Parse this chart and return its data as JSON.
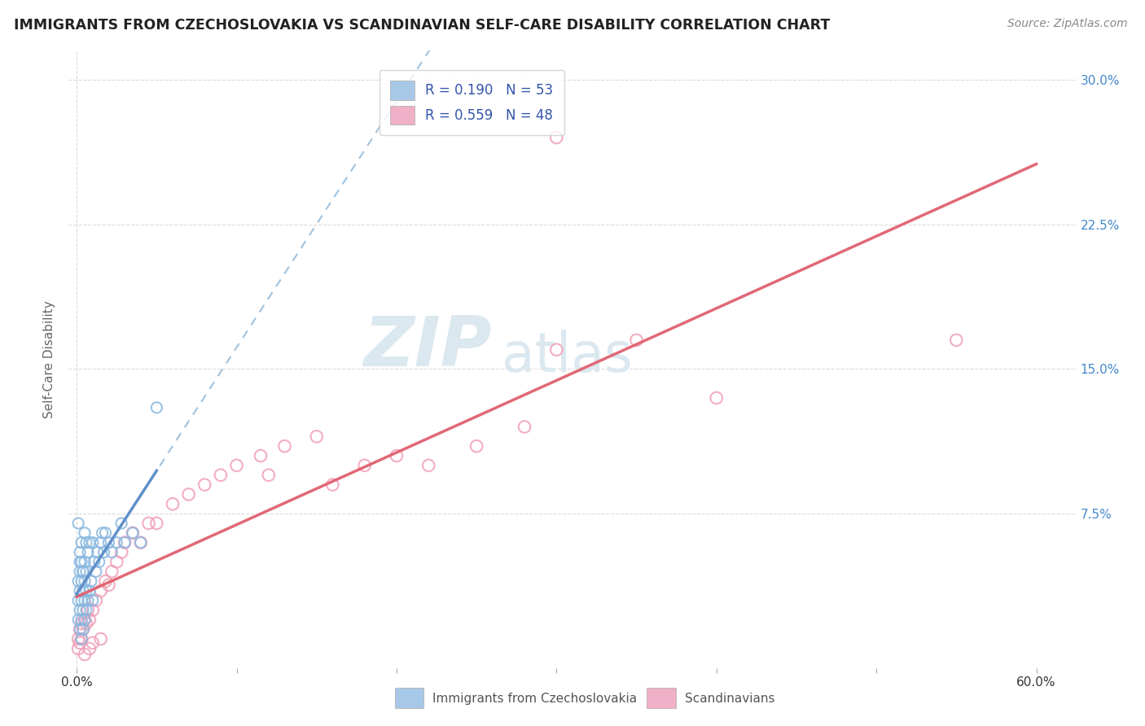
{
  "title": "IMMIGRANTS FROM CZECHOSLOVAKIA VS SCANDINAVIAN SELF-CARE DISABILITY CORRELATION CHART",
  "source": "Source: ZipAtlas.com",
  "xlim": [
    -0.005,
    0.625
  ],
  "ylim": [
    -0.005,
    0.315
  ],
  "ylabel": "Self-Care Disability",
  "x_tick_positions": [
    0.0,
    0.1,
    0.2,
    0.3,
    0.4,
    0.5,
    0.6
  ],
  "x_tick_labels": [
    "0.0%",
    "",
    "",
    "",
    "",
    "",
    "60.0%"
  ],
  "y_tick_positions": [
    0.0,
    0.075,
    0.15,
    0.225,
    0.3
  ],
  "y_tick_labels_right": [
    "",
    "7.5%",
    "15.0%",
    "22.5%",
    "30.0%"
  ],
  "blue_scatter_color": "#8ab8e0",
  "pink_scatter_color": "#f0a0b8",
  "blue_line_color": "#6090c8",
  "blue_dash_color": "#90b8d8",
  "pink_line_color": "#e06070",
  "watermark_color": "#dce8f0",
  "grid_color": "#cccccc",
  "background_color": "#ffffff",
  "legend_box_blue": "#a8c8e8",
  "legend_box_pink": "#f0b0c8",
  "legend_text_color": "#3355aa",
  "legend_n_color": "#333333",
  "source_color": "#888888",
  "ylabel_color": "#666666",
  "right_tick_color": "#4488cc",
  "bottom_label_color": "#555555",
  "blue_scatter_size": 90,
  "pink_scatter_size": 110,
  "blue_x": [
    0.001,
    0.001,
    0.001,
    0.002,
    0.002,
    0.002,
    0.002,
    0.002,
    0.003,
    0.003,
    0.003,
    0.003,
    0.003,
    0.004,
    0.004,
    0.004,
    0.004,
    0.005,
    0.005,
    0.005,
    0.005,
    0.006,
    0.006,
    0.006,
    0.007,
    0.007,
    0.008,
    0.008,
    0.009,
    0.01,
    0.01,
    0.011,
    0.012,
    0.013,
    0.014,
    0.015,
    0.016,
    0.017,
    0.018,
    0.02,
    0.022,
    0.025,
    0.028,
    0.03,
    0.035,
    0.04,
    0.001,
    0.002,
    0.003,
    0.004,
    0.005,
    0.006,
    0.05
  ],
  "blue_y": [
    0.02,
    0.03,
    0.04,
    0.015,
    0.025,
    0.035,
    0.045,
    0.055,
    0.01,
    0.02,
    0.03,
    0.04,
    0.05,
    0.015,
    0.025,
    0.035,
    0.045,
    0.02,
    0.03,
    0.04,
    0.05,
    0.025,
    0.035,
    0.06,
    0.03,
    0.055,
    0.035,
    0.06,
    0.04,
    0.03,
    0.06,
    0.05,
    0.045,
    0.055,
    0.05,
    0.06,
    0.065,
    0.055,
    0.065,
    0.06,
    0.055,
    0.06,
    0.07,
    0.06,
    0.065,
    0.06,
    0.07,
    0.05,
    0.06,
    0.045,
    0.065,
    0.045,
    0.13
  ],
  "pink_x": [
    0.001,
    0.001,
    0.002,
    0.002,
    0.003,
    0.003,
    0.004,
    0.005,
    0.006,
    0.007,
    0.008,
    0.01,
    0.012,
    0.015,
    0.018,
    0.02,
    0.022,
    0.025,
    0.028,
    0.03,
    0.035,
    0.04,
    0.045,
    0.05,
    0.06,
    0.07,
    0.08,
    0.09,
    0.1,
    0.115,
    0.12,
    0.13,
    0.15,
    0.16,
    0.18,
    0.2,
    0.22,
    0.25,
    0.28,
    0.3,
    0.005,
    0.008,
    0.01,
    0.015,
    0.4,
    0.35,
    0.55,
    0.3
  ],
  "pink_y": [
    0.005,
    0.01,
    0.008,
    0.015,
    0.01,
    0.018,
    0.015,
    0.02,
    0.018,
    0.025,
    0.02,
    0.025,
    0.03,
    0.035,
    0.04,
    0.038,
    0.045,
    0.05,
    0.055,
    0.06,
    0.065,
    0.06,
    0.07,
    0.07,
    0.08,
    0.085,
    0.09,
    0.095,
    0.1,
    0.105,
    0.095,
    0.11,
    0.115,
    0.09,
    0.1,
    0.105,
    0.1,
    0.11,
    0.12,
    0.16,
    0.002,
    0.005,
    0.008,
    0.01,
    0.135,
    0.165,
    0.165,
    0.27
  ]
}
